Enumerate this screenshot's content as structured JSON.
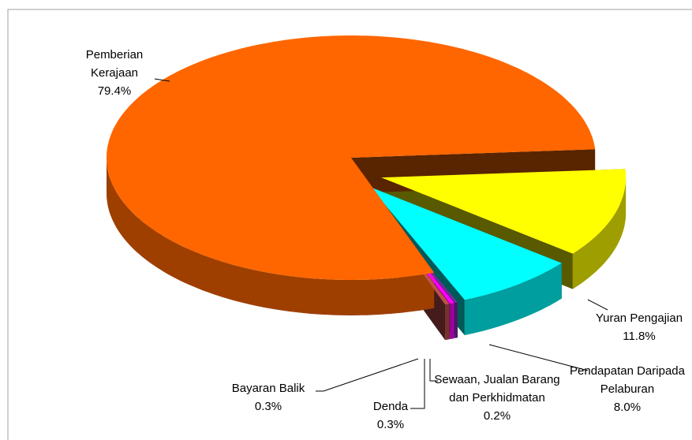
{
  "chart_data": {
    "type": "pie3d",
    "categories": [
      "Yuran Pengajian",
      "Pendapatan Daripada Pelaburan",
      "Sewaan, Jualan Barang dan Perkhidmatan",
      "Denda",
      "Bayaran Balik",
      "Pemberian Kerajaan"
    ],
    "values": [
      11.8,
      8.0,
      0.2,
      0.3,
      0.3,
      79.4
    ],
    "value_labels": [
      "11.8%",
      "8.0%",
      "0.2%",
      "0.3%",
      "0.3%",
      "79.4%"
    ],
    "colors": [
      "#ffff00",
      "#00ffff",
      "#7030a0",
      "#ff00ff",
      "#c0504d",
      "#ff6600"
    ]
  }
}
